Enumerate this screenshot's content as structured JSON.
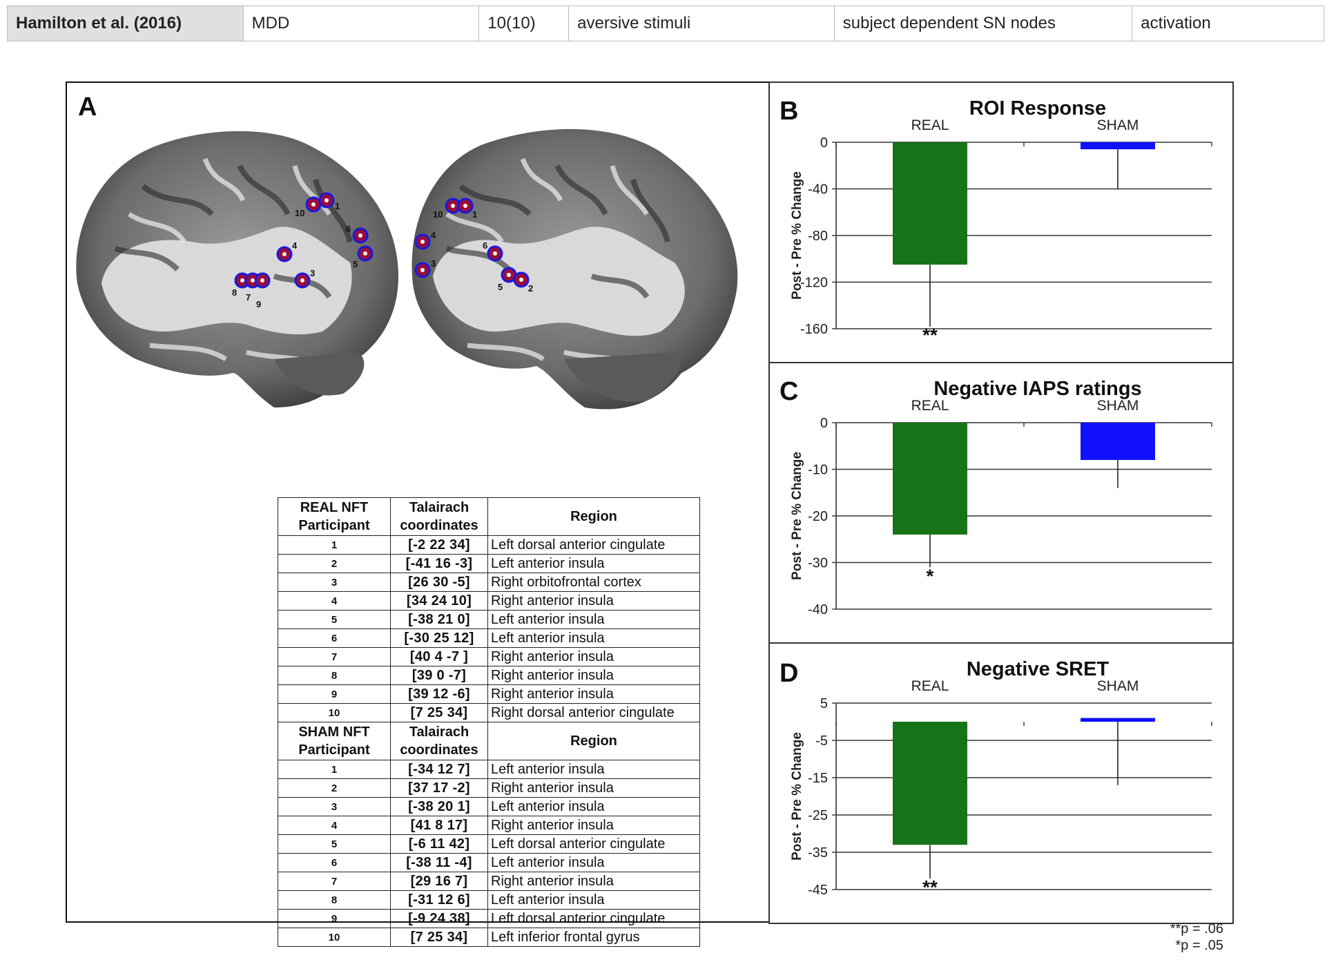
{
  "top_row": {
    "cells": [
      "Hamilton et al. (2016)",
      "MDD",
      "10(10)",
      "aversive stimuli",
      "subject dependent SN nodes",
      "activation"
    ]
  },
  "panel_a": {
    "letter": "A",
    "left_brain_labels": [
      "10",
      "1",
      "6",
      "4",
      "5",
      "3",
      "8",
      "7",
      "9"
    ],
    "right_brain_labels": [
      "10",
      "1",
      "4",
      "6",
      "3",
      "5",
      "2"
    ],
    "real_header": {
      "participant": [
        "REAL NFT",
        "Participant"
      ],
      "coords": [
        "Talairach",
        "coordinates"
      ],
      "region": "Region"
    },
    "real_rows": [
      {
        "n": "1",
        "c": "[-2 22 34]",
        "r": "Left dorsal anterior cingulate"
      },
      {
        "n": "2",
        "c": "[-41 16 -3]",
        "r": "Left anterior insula"
      },
      {
        "n": "3",
        "c": "[26 30 -5]",
        "r": "Right orbitofrontal cortex"
      },
      {
        "n": "4",
        "c": "[34 24 10]",
        "r": "Right anterior insula"
      },
      {
        "n": "5",
        "c": "[-38 21 0]",
        "r": "Left anterior insula"
      },
      {
        "n": "6",
        "c": "[-30 25 12]",
        "r": "Left anterior insula"
      },
      {
        "n": "7",
        "c": "[40 4 -7 ]",
        "r": "Right anterior insula"
      },
      {
        "n": "8",
        "c": "[39 0 -7]",
        "r": "Right anterior insula"
      },
      {
        "n": "9",
        "c": "[39 12 -6]",
        "r": "Right anterior insula"
      },
      {
        "n": "10",
        "c": "[7 25 34]",
        "r": "Right dorsal anterior cingulate"
      }
    ],
    "sham_header": {
      "participant": [
        "SHAM NFT",
        "Participant"
      ],
      "coords": [
        "Talairach",
        "coordinates"
      ],
      "region": "Region"
    },
    "sham_rows": [
      {
        "n": "1",
        "c": "[-34 12 7]",
        "r": "Left anterior insula"
      },
      {
        "n": "2",
        "c": "[37 17 -2]",
        "r": "Right anterior insula"
      },
      {
        "n": "3",
        "c": "[-38 20 1]",
        "r": "Left anterior insula"
      },
      {
        "n": "4",
        "c": "[41 8 17]",
        "r": "Right anterior insula"
      },
      {
        "n": "5",
        "c": "[-6 11 42]",
        "r": "Left dorsal anterior cingulate"
      },
      {
        "n": "6",
        "c": "[-38 11 -4]",
        "r": "Left anterior insula"
      },
      {
        "n": "7",
        "c": "[29 16 7]",
        "r": "Right anterior insula"
      },
      {
        "n": "8",
        "c": "[-31 12 6]",
        "r": "Left anterior insula"
      },
      {
        "n": "9",
        "c": "[-9 24 38]",
        "r": "Left dorsal anterior cingulate"
      },
      {
        "n": "10",
        "c": "[7 25 34]",
        "r": "Left inferior frontal gyrus"
      }
    ]
  },
  "chart_data": [
    {
      "type": "bar",
      "letter": "B",
      "title": "ROI Response",
      "categories": [
        "REAL",
        "SHAM"
      ],
      "values": [
        -105,
        -6
      ],
      "error_ends": [
        -158,
        -40
      ],
      "significance": [
        "**",
        ""
      ],
      "ylabel": "Post - Pre % Change",
      "ylim": [
        -160,
        0
      ],
      "yticks": [
        0,
        -40,
        -80,
        -120,
        -160
      ],
      "ytick_labels": [
        "0",
        "-40",
        "-80",
        "-120",
        "-160"
      ],
      "colors": [
        "#177317",
        "#1010ff"
      ],
      "grid": true
    },
    {
      "type": "bar",
      "letter": "C",
      "title": "Negative IAPS ratings",
      "categories": [
        "REAL",
        "SHAM"
      ],
      "values": [
        -24,
        -8
      ],
      "error_ends": [
        -31,
        -14
      ],
      "significance": [
        "*",
        ""
      ],
      "ylabel": "Post - Pre % Change",
      "ylim": [
        -40,
        0
      ],
      "yticks": [
        0,
        -10,
        -20,
        -30,
        -40
      ],
      "ytick_labels": [
        "0",
        "-10",
        "-20",
        "-30",
        "-40"
      ],
      "colors": [
        "#177317",
        "#1010ff"
      ],
      "grid": true
    },
    {
      "type": "bar",
      "letter": "D",
      "title": "Negative SRET",
      "categories": [
        "REAL",
        "SHAM"
      ],
      "values": [
        -33,
        1
      ],
      "error_ends": [
        -42,
        -17
      ],
      "significance": [
        "**",
        ""
      ],
      "ylabel": "Post - Pre % Change",
      "ylim": [
        -45,
        5
      ],
      "yticks": [
        5,
        -5,
        -15,
        -25,
        -35,
        -45
      ],
      "ytick_labels": [
        "5",
        "-5",
        "-15",
        "-25",
        "-35",
        "-45"
      ],
      "colors": [
        "#177317",
        "#1010ff"
      ],
      "grid": true
    }
  ],
  "footnotes": [
    "**p = .06",
    "*p = .05"
  ]
}
